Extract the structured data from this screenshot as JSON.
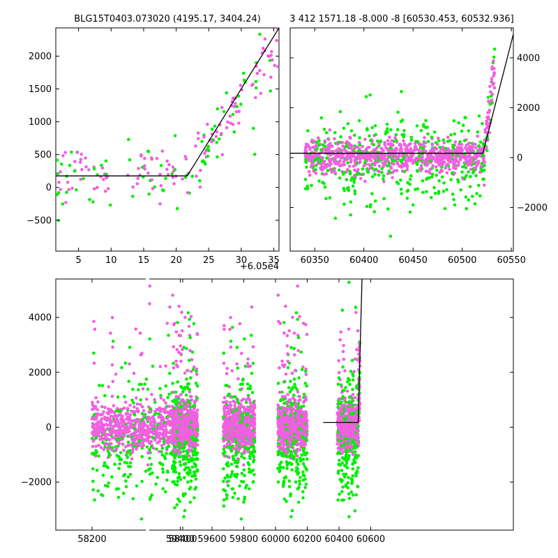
{
  "colors": {
    "magenta": "#f060e0",
    "green": "#00ee00",
    "model": "#000000"
  },
  "chart_data": [
    {
      "id": "top-left",
      "type": "scatter",
      "title": "BLG15T0403.073020 (4195.17, 3404.24)",
      "xlabel": "",
      "ylabel": "",
      "x_offset_text": "+6.05e4",
      "xlim": [
        1.5,
        35.8
      ],
      "ylim": [
        -970,
        2430
      ],
      "x_ticks": [
        5,
        10,
        15,
        20,
        25,
        30,
        35
      ],
      "x_tick_labels": [
        "5",
        "10",
        "15",
        "20",
        "25",
        "30",
        "35"
      ],
      "y_ticks": [
        -500,
        0,
        500,
        1000,
        1500,
        2000
      ],
      "y_tick_labels": [
        "−500",
        "0",
        "500",
        "1000",
        "1500",
        "2000"
      ],
      "model_line": [
        [
          1.5,
          175
        ],
        [
          21.7,
          175
        ],
        [
          35.8,
          2430
        ]
      ],
      "grid": false
    },
    {
      "id": "top-right",
      "type": "scatter",
      "title": "3 412 1571.18 -8.000 -8 [60530.453, 60532.936]",
      "xlabel": "",
      "ylabel": "",
      "xlim": [
        60325,
        60552
      ],
      "ylim": [
        -3750,
        5200
      ],
      "x_ticks": [
        60350,
        60400,
        60450,
        60500,
        60550
      ],
      "x_tick_labels": [
        "60350",
        "60400",
        "60450",
        "60500",
        "60550"
      ],
      "y_ticks": [
        -2000,
        0,
        2000,
        4000
      ],
      "y_tick_labels": [
        "−2000",
        "0",
        "2000",
        "4000"
      ],
      "y_axis_side": "right",
      "model_line": [
        [
          60325,
          175
        ],
        [
          60521,
          175
        ],
        [
          60552,
          4950
        ]
      ],
      "grid": false
    },
    {
      "id": "bottom",
      "type": "scatter",
      "title": "",
      "xlabel": "",
      "ylabel": "",
      "xlim": [
        58120,
        60680
      ],
      "ylim": [
        -3750,
        5400
      ],
      "x_ticks": [
        58200,
        58400,
        59400,
        59600,
        59800,
        60000,
        60200,
        60400,
        60600
      ],
      "x_tick_labels": [
        "58200",
        "58400",
        "59400",
        "59600",
        "59800",
        "60000",
        "60200",
        "60400",
        "60600"
      ],
      "y_ticks": [
        -2000,
        0,
        2000,
        4000
      ],
      "y_tick_labels": [
        "−2000",
        "0",
        "2000",
        "4000"
      ],
      "seasons": [
        [
          58200,
          58390
        ],
        [
          59350,
          59510
        ],
        [
          59670,
          59870
        ],
        [
          60015,
          60200
        ],
        [
          60390,
          60532
        ]
      ],
      "model_line": [
        [
          60300,
          175
        ],
        [
          60521,
          175
        ],
        [
          60545,
          5400
        ]
      ],
      "grid": false
    }
  ]
}
